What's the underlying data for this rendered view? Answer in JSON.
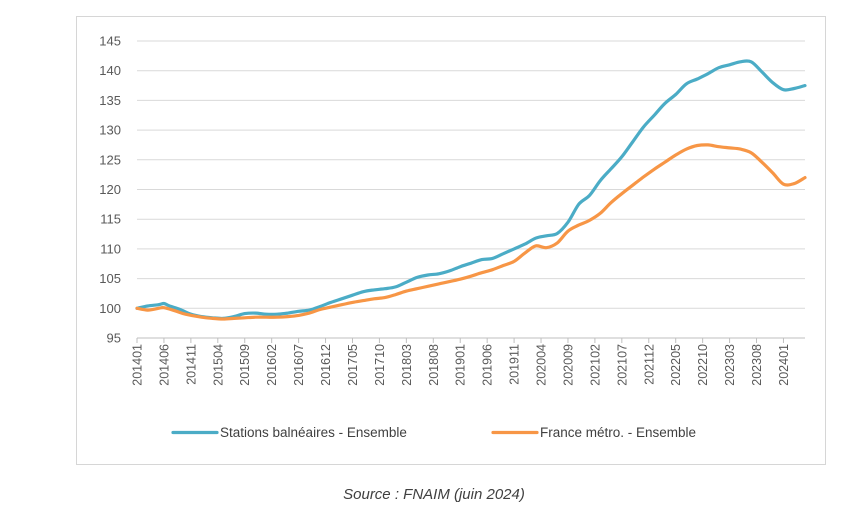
{
  "source": "Source : FNAIM (juin 2024)",
  "colors": {
    "series1": "#4BACC6",
    "series2": "#F79646",
    "grid": "#d9d9d9",
    "axis": "#bfbfbf"
  },
  "chart_data": {
    "type": "line",
    "title": "",
    "xlabel": "",
    "ylabel": "",
    "ylim": [
      95,
      145
    ],
    "y_ticks": [
      95,
      100,
      105,
      110,
      115,
      120,
      125,
      130,
      135,
      140,
      145
    ],
    "x_start": "2014-01",
    "x_end": "2024-05",
    "x_tick_labels": [
      "201401",
      "201406",
      "201411",
      "201504",
      "201509",
      "201602",
      "201607",
      "201612",
      "201705",
      "201710",
      "201803",
      "201808",
      "201901",
      "201906",
      "201911",
      "202004",
      "202009",
      "202102",
      "202107",
      "202112",
      "202205",
      "202210",
      "202303",
      "202308",
      "202401"
    ],
    "grid": "horizontal",
    "legend_position": "bottom",
    "series": [
      {
        "name": "Stations balnéaires - Ensemble",
        "color": "#4BACC6",
        "points": [
          [
            "201401",
            100
          ],
          [
            "201403",
            100.4
          ],
          [
            "201405",
            100.6
          ],
          [
            "201406",
            100.8
          ],
          [
            "201407",
            100.4
          ],
          [
            "201409",
            99.8
          ],
          [
            "201411",
            99
          ],
          [
            "201501",
            98.6
          ],
          [
            "201503",
            98.4
          ],
          [
            "201505",
            98.3
          ],
          [
            "201507",
            98.6
          ],
          [
            "201509",
            99.1
          ],
          [
            "201511",
            99.2
          ],
          [
            "201601",
            99.0
          ],
          [
            "201603",
            99.0
          ],
          [
            "201605",
            99.2
          ],
          [
            "201607",
            99.5
          ],
          [
            "201609",
            99.7
          ],
          [
            "201611",
            100.3
          ],
          [
            "201701",
            101.0
          ],
          [
            "201703",
            101.6
          ],
          [
            "201705",
            102.2
          ],
          [
            "201707",
            102.8
          ],
          [
            "201709",
            103.1
          ],
          [
            "201711",
            103.3
          ],
          [
            "201801",
            103.6
          ],
          [
            "201803",
            104.4
          ],
          [
            "201805",
            105.2
          ],
          [
            "201807",
            105.6
          ],
          [
            "201809",
            105.8
          ],
          [
            "201811",
            106.3
          ],
          [
            "201901",
            107.0
          ],
          [
            "201903",
            107.6
          ],
          [
            "201905",
            108.2
          ],
          [
            "201907",
            108.4
          ],
          [
            "201909",
            109.2
          ],
          [
            "201911",
            110.0
          ],
          [
            "202001",
            110.8
          ],
          [
            "202003",
            111.8
          ],
          [
            "202005",
            112.2
          ],
          [
            "202007",
            112.6
          ],
          [
            "202009",
            114.5
          ],
          [
            "202011",
            117.5
          ],
          [
            "202101",
            119.0
          ],
          [
            "202103",
            121.5
          ],
          [
            "202105",
            123.5
          ],
          [
            "202107",
            125.5
          ],
          [
            "202109",
            128.0
          ],
          [
            "202111",
            130.5
          ],
          [
            "202201",
            132.5
          ],
          [
            "202203",
            134.5
          ],
          [
            "202205",
            136.0
          ],
          [
            "202207",
            137.8
          ],
          [
            "202209",
            138.6
          ],
          [
            "202211",
            139.5
          ],
          [
            "202301",
            140.5
          ],
          [
            "202303",
            141.0
          ],
          [
            "202305",
            141.5
          ],
          [
            "202307",
            141.5
          ],
          [
            "202309",
            139.8
          ],
          [
            "202311",
            138.0
          ],
          [
            "202401",
            136.8
          ],
          [
            "202403",
            137.0
          ],
          [
            "202405",
            137.5
          ]
        ]
      },
      {
        "name": "France métro. - Ensemble",
        "color": "#F79646",
        "points": [
          [
            "201401",
            100
          ],
          [
            "201403",
            99.7
          ],
          [
            "201405",
            100.0
          ],
          [
            "201406",
            100.1
          ],
          [
            "201408",
            99.6
          ],
          [
            "201410",
            99.0
          ],
          [
            "201501",
            98.5
          ],
          [
            "201503",
            98.3
          ],
          [
            "201505",
            98.2
          ],
          [
            "201507",
            98.3
          ],
          [
            "201509",
            98.4
          ],
          [
            "201511",
            98.5
          ],
          [
            "201601",
            98.5
          ],
          [
            "201603",
            98.5
          ],
          [
            "201605",
            98.6
          ],
          [
            "201607",
            98.8
          ],
          [
            "201609",
            99.2
          ],
          [
            "201611",
            99.8
          ],
          [
            "201701",
            100.2
          ],
          [
            "201703",
            100.6
          ],
          [
            "201705",
            101.0
          ],
          [
            "201707",
            101.3
          ],
          [
            "201709",
            101.6
          ],
          [
            "201711",
            101.8
          ],
          [
            "201801",
            102.3
          ],
          [
            "201803",
            102.9
          ],
          [
            "201805",
            103.3
          ],
          [
            "201807",
            103.7
          ],
          [
            "201809",
            104.1
          ],
          [
            "201811",
            104.5
          ],
          [
            "201901",
            104.9
          ],
          [
            "201903",
            105.4
          ],
          [
            "201905",
            106.0
          ],
          [
            "201907",
            106.5
          ],
          [
            "201909",
            107.2
          ],
          [
            "201911",
            107.9
          ],
          [
            "202001",
            109.3
          ],
          [
            "202003",
            110.5
          ],
          [
            "202005",
            110.2
          ],
          [
            "202007",
            111.0
          ],
          [
            "202009",
            113.0
          ],
          [
            "202011",
            114.0
          ],
          [
            "202101",
            114.8
          ],
          [
            "202103",
            116.0
          ],
          [
            "202105",
            117.8
          ],
          [
            "202107",
            119.3
          ],
          [
            "202109",
            120.7
          ],
          [
            "202111",
            122.1
          ],
          [
            "202201",
            123.4
          ],
          [
            "202203",
            124.6
          ],
          [
            "202205",
            125.8
          ],
          [
            "202207",
            126.8
          ],
          [
            "202209",
            127.4
          ],
          [
            "202211",
            127.5
          ],
          [
            "202301",
            127.2
          ],
          [
            "202303",
            127.0
          ],
          [
            "202305",
            126.8
          ],
          [
            "202307",
            126.2
          ],
          [
            "202309",
            124.6
          ],
          [
            "202311",
            122.8
          ],
          [
            "202401",
            120.9
          ],
          [
            "202403",
            121.0
          ],
          [
            "202405",
            122.0
          ]
        ]
      }
    ]
  }
}
